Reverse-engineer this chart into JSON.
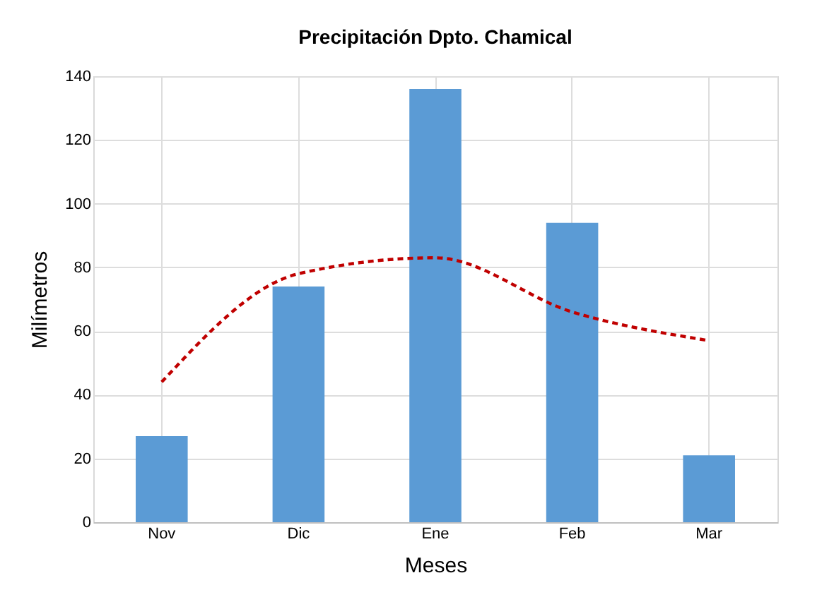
{
  "chart_data": {
    "type": "bar",
    "title": "Precipitación Dpto. Chamical",
    "xlabel": "Meses",
    "ylabel": "Milímetros",
    "categories": [
      "Nov",
      "Dic",
      "Ene",
      "Feb",
      "Mar"
    ],
    "series": [
      {
        "color": "#5b9bd5",
        "values": [
          27,
          74,
          136,
          94,
          21
        ]
      },
      {
        "type": "line",
        "color": "#c00000",
        "line_style": "dashed",
        "marker": "none",
        "values": [
          44,
          78,
          83,
          66,
          57
        ]
      }
    ],
    "ylim": [
      0,
      140
    ],
    "yticks": [
      0,
      20,
      40,
      60,
      80,
      100,
      120,
      140
    ],
    "grid": true
  }
}
